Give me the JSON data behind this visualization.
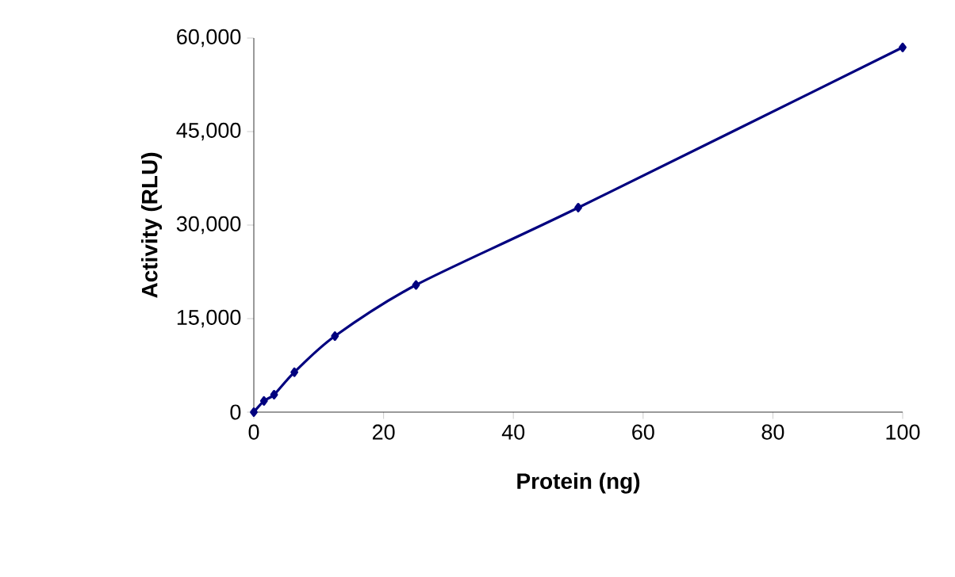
{
  "chart_data": {
    "type": "line",
    "xlabel": "Protein (ng)",
    "ylabel": "Activity (RLU)",
    "x": [
      0,
      1.5625,
      3.125,
      6.25,
      12.5,
      25,
      50,
      100
    ],
    "values": [
      0,
      1800,
      2800,
      6400,
      12200,
      20400,
      32800,
      58500
    ],
    "color": "#00007f",
    "marker": "diamond",
    "line_style": "solid",
    "xlim": [
      0,
      100
    ],
    "xticks": [
      0,
      20,
      40,
      60,
      80,
      100
    ],
    "ylim": [
      0,
      60000
    ],
    "yticks": [
      0,
      {
        "value": 15000,
        "label": "15,000"
      },
      {
        "value": 30000,
        "label": "30,000"
      },
      {
        "value": 45000,
        "label": "45,000"
      },
      {
        "value": 60000,
        "label": "60,000"
      }
    ],
    "grid": false
  }
}
